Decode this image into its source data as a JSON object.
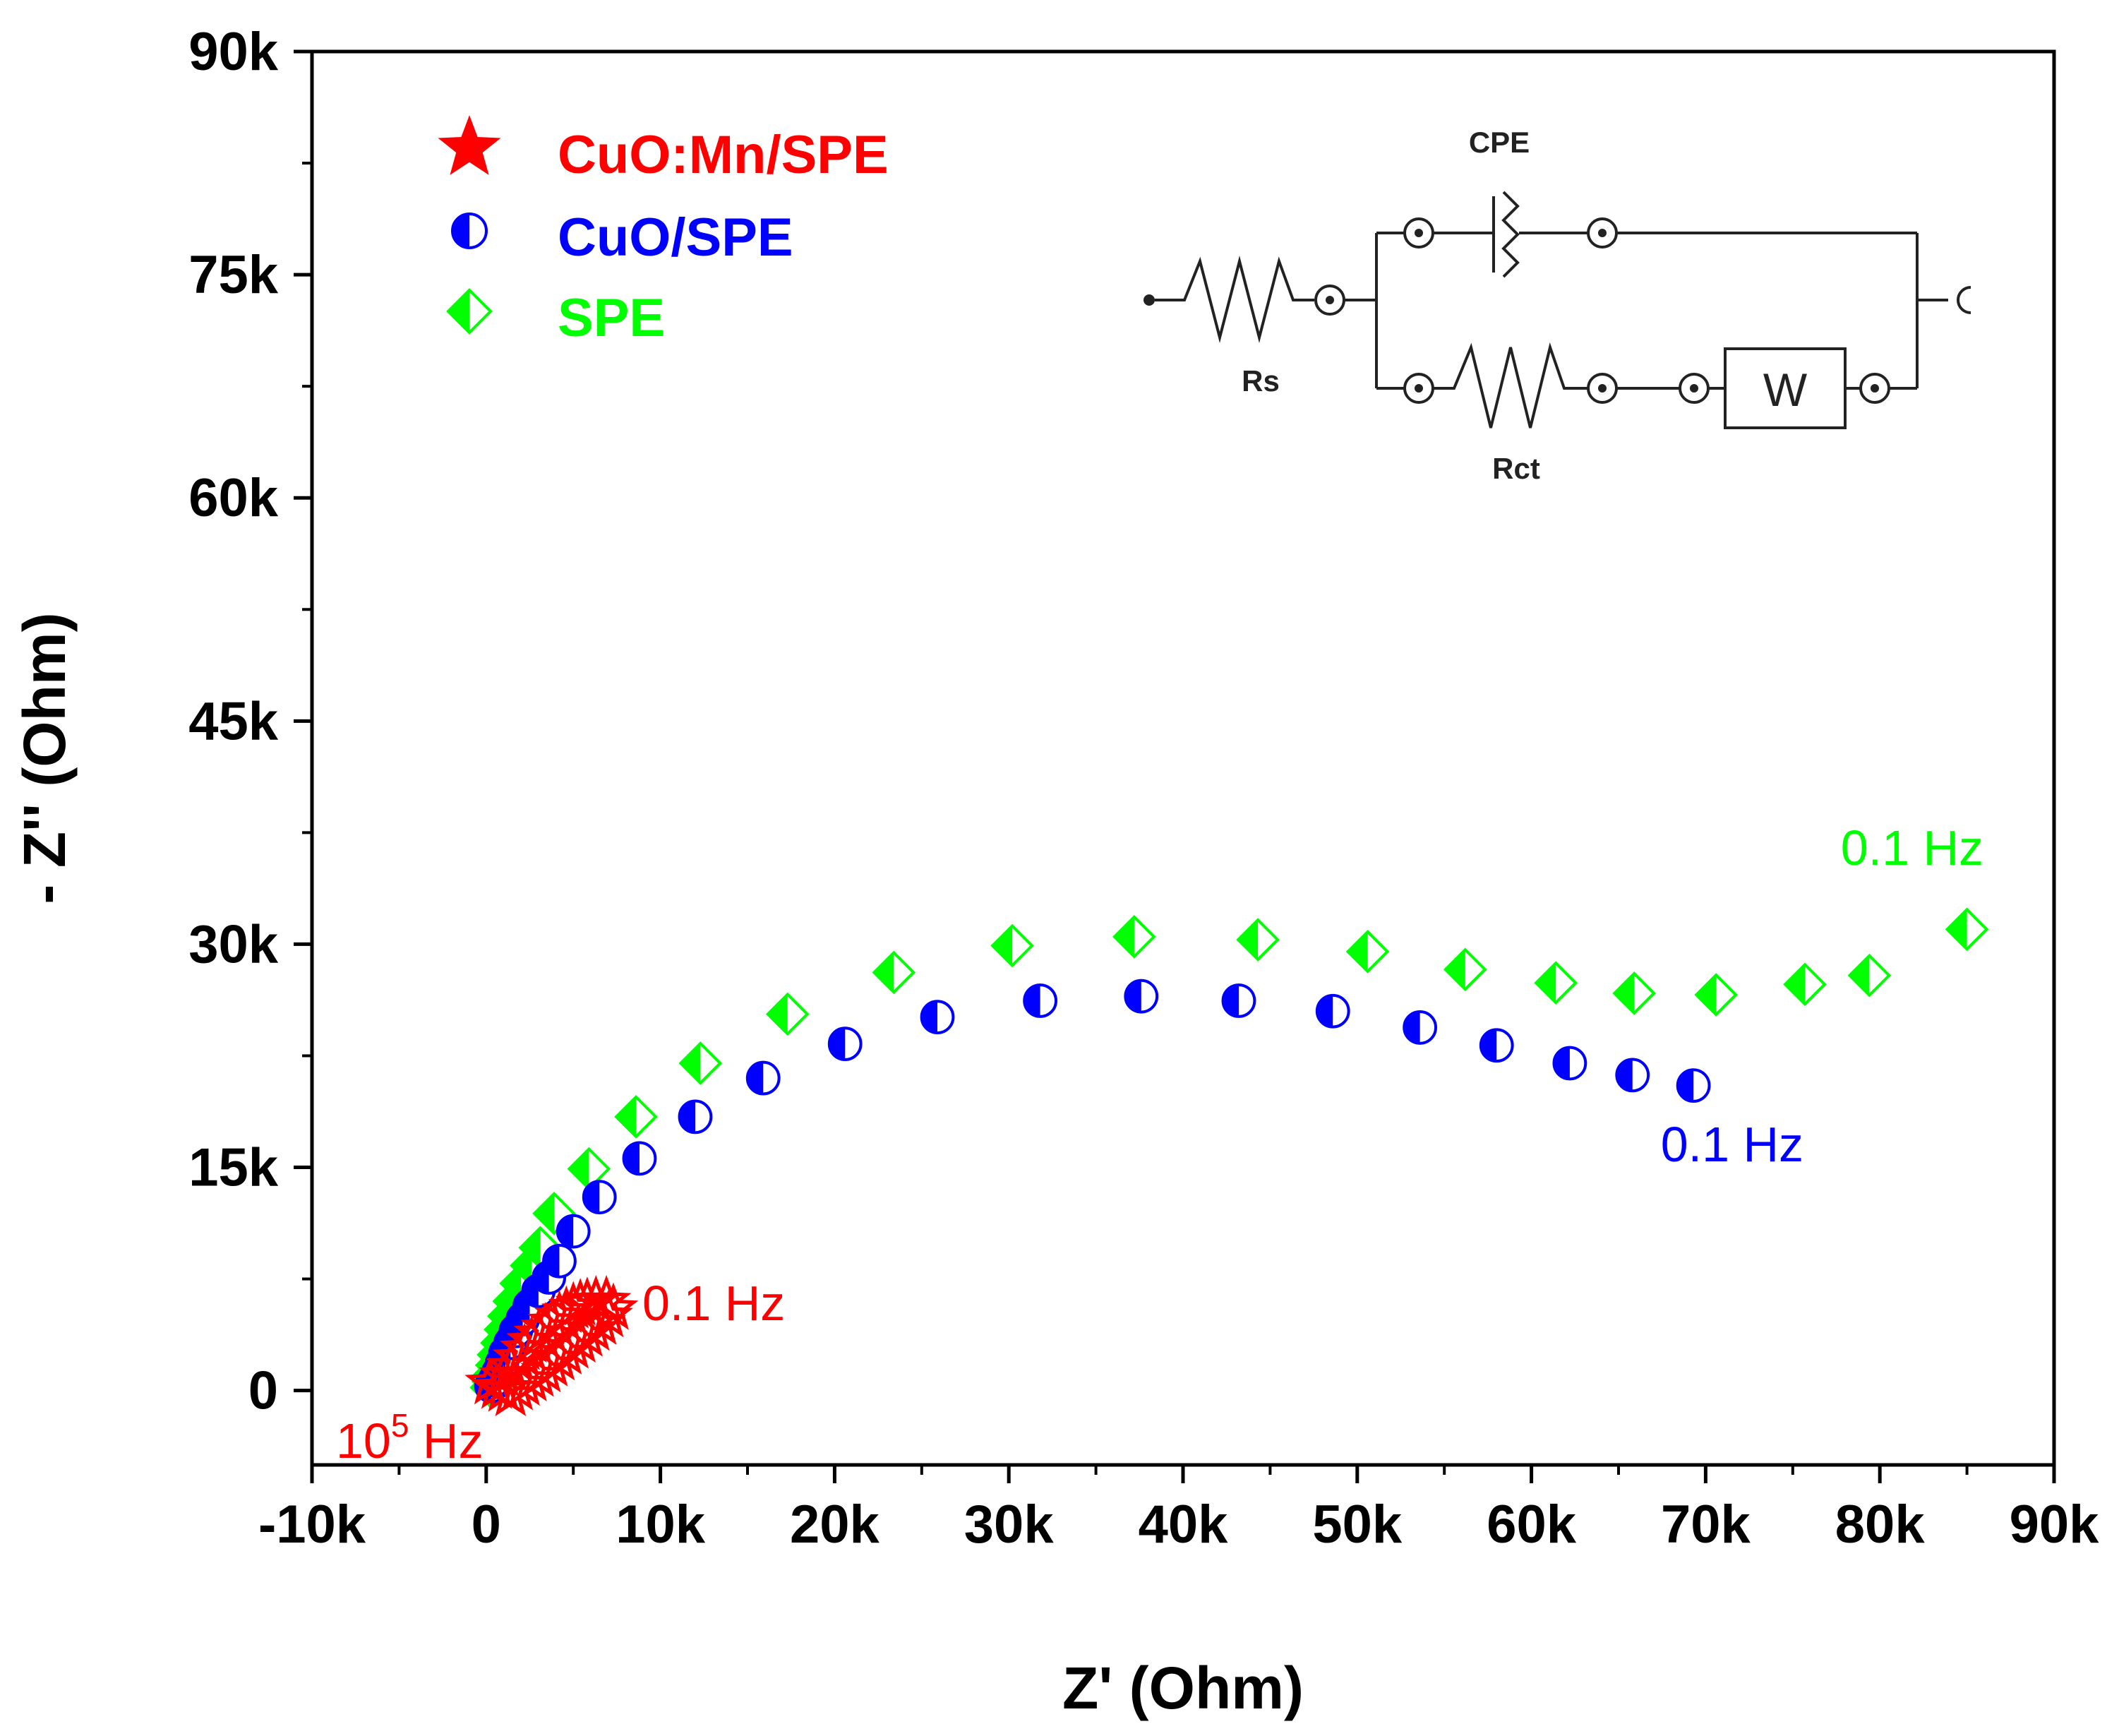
{
  "chart_data": {
    "type": "scatter",
    "title": "",
    "xlabel": "Z' (Ohm)",
    "ylabel": "- Z'' (Ohm)",
    "xlim": [
      -10000,
      90000
    ],
    "ylim": [
      -5000,
      90000
    ],
    "x_ticks": [
      -10000,
      0,
      10000,
      20000,
      30000,
      40000,
      50000,
      60000,
      70000,
      80000,
      90000
    ],
    "x_tick_labels": [
      "-10k",
      "0",
      "10k",
      "20k",
      "30k",
      "40k",
      "50k",
      "60k",
      "70k",
      "80k",
      "90k"
    ],
    "y_ticks": [
      0,
      15000,
      30000,
      45000,
      60000,
      75000,
      90000
    ],
    "y_tick_labels": [
      "0",
      "15k",
      "30k",
      "45k",
      "60k",
      "75k",
      "90k"
    ],
    "legend_position": "top-left",
    "series": [
      {
        "name": "CuO:Mn/SPE",
        "color": "#ff0000",
        "marker": "star",
        "points": [
          [
            200,
            500
          ],
          [
            600,
            200
          ],
          [
            1000,
            0
          ],
          [
            1400,
            -300
          ],
          [
            1800,
            100
          ],
          [
            2200,
            400
          ],
          [
            2600,
            700
          ],
          [
            3000,
            1000
          ],
          [
            3400,
            1300
          ],
          [
            3800,
            1700
          ],
          [
            4200,
            2100
          ],
          [
            4600,
            2500
          ],
          [
            5000,
            2900
          ],
          [
            5400,
            3300
          ],
          [
            5800,
            3700
          ],
          [
            6200,
            4100
          ],
          [
            6600,
            4500
          ],
          [
            7000,
            5000
          ],
          [
            7300,
            5500
          ],
          [
            1000,
            1000
          ],
          [
            1400,
            1600
          ],
          [
            1800,
            2200
          ],
          [
            2200,
            2800
          ],
          [
            2600,
            3300
          ],
          [
            3000,
            3800
          ],
          [
            3400,
            4200
          ],
          [
            3800,
            4600
          ],
          [
            4200,
            5000
          ],
          [
            4600,
            5300
          ],
          [
            5000,
            5600
          ],
          [
            5400,
            5800
          ],
          [
            5800,
            5900
          ],
          [
            6300,
            6000
          ],
          [
            6900,
            6000
          ]
        ]
      },
      {
        "name": "CuO/SPE",
        "color": "#0000ff",
        "marker": "half-circle",
        "points": [
          [
            300,
            300
          ],
          [
            500,
            700
          ],
          [
            700,
            1200
          ],
          [
            900,
            1800
          ],
          [
            1100,
            2500
          ],
          [
            1400,
            3200
          ],
          [
            1700,
            4000
          ],
          [
            2100,
            4800
          ],
          [
            2500,
            5700
          ],
          [
            3000,
            6700
          ],
          [
            3600,
            7600
          ],
          [
            4200,
            8700
          ],
          [
            5000,
            10700
          ],
          [
            6500,
            13000
          ],
          [
            8800,
            15600
          ],
          [
            12000,
            18400
          ],
          [
            15900,
            21000
          ],
          [
            20600,
            23300
          ],
          [
            25900,
            25100
          ],
          [
            31800,
            26200
          ],
          [
            37600,
            26500
          ],
          [
            43200,
            26200
          ],
          [
            48600,
            25500
          ],
          [
            53600,
            24400
          ],
          [
            58000,
            23200
          ],
          [
            62200,
            22000
          ],
          [
            65800,
            21200
          ],
          [
            69300,
            20500
          ]
        ]
      },
      {
        "name": "SPE",
        "color": "#00ff00",
        "marker": "half-diamond",
        "points": [
          [
            300,
            200
          ],
          [
            400,
            600
          ],
          [
            500,
            1100
          ],
          [
            600,
            1700
          ],
          [
            700,
            2400
          ],
          [
            900,
            3200
          ],
          [
            1100,
            4100
          ],
          [
            1300,
            5000
          ],
          [
            1600,
            6000
          ],
          [
            2000,
            7200
          ],
          [
            2600,
            8400
          ],
          [
            3100,
            9600
          ],
          [
            3900,
            11900
          ],
          [
            5900,
            14900
          ],
          [
            8600,
            18400
          ],
          [
            12300,
            22000
          ],
          [
            17300,
            25300
          ],
          [
            23400,
            28100
          ],
          [
            30200,
            29900
          ],
          [
            37200,
            30500
          ],
          [
            44300,
            30300
          ],
          [
            50600,
            29500
          ],
          [
            56200,
            28300
          ],
          [
            61400,
            27400
          ],
          [
            65900,
            26700
          ],
          [
            70600,
            26600
          ],
          [
            75700,
            27300
          ],
          [
            79400,
            27900
          ],
          [
            85000,
            31000
          ]
        ]
      }
    ],
    "annotations": [
      {
        "text": "0.1 Hz",
        "series": "SPE",
        "color": "#00ff00"
      },
      {
        "text": "0.1 Hz",
        "series": "CuO/SPE",
        "color": "#0000ff"
      },
      {
        "text": "0.1 Hz",
        "series": "CuO:Mn/SPE",
        "color": "#ff0000"
      },
      {
        "text": "10",
        "sup": "5",
        "suffix": " Hz",
        "series": "CuO:Mn/SPE",
        "color": "#ff0000"
      }
    ]
  },
  "inset_circuit": {
    "cpe_label": "CPE",
    "rs_label": "Rs",
    "rct_label": "Rct",
    "w_label": "W"
  }
}
